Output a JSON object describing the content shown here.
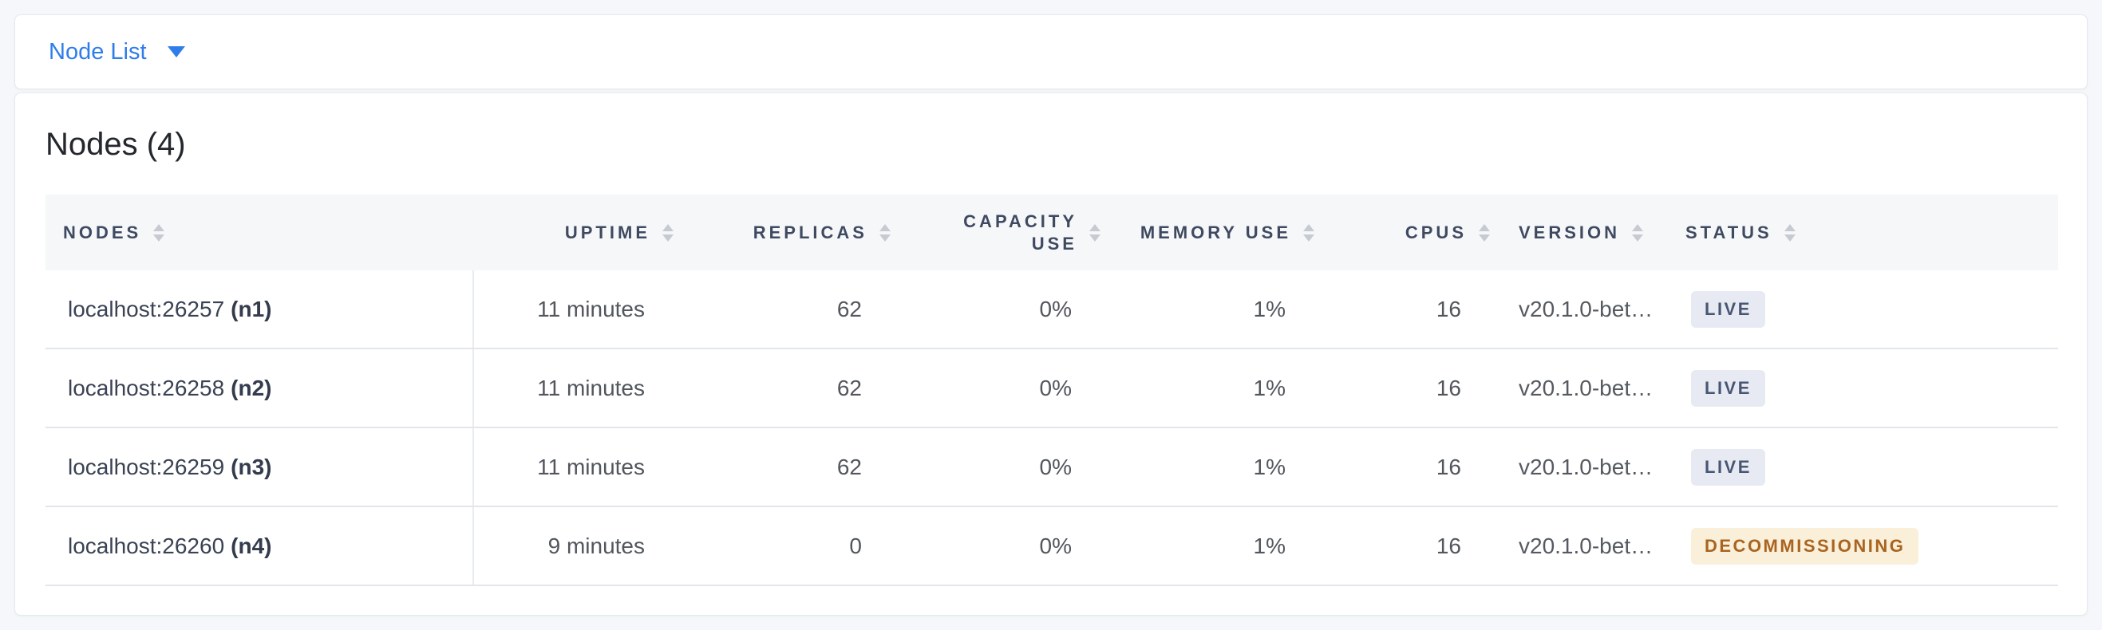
{
  "view_selector": {
    "label": "Node List"
  },
  "page": {
    "title": "Nodes (4)"
  },
  "table": {
    "columns": [
      {
        "label": "NODES"
      },
      {
        "label": "UPTIME"
      },
      {
        "label": "REPLICAS"
      },
      {
        "label": "CAPACITY USE"
      },
      {
        "label": "MEMORY USE"
      },
      {
        "label": "CPUS"
      },
      {
        "label": "VERSION"
      },
      {
        "label": "STATUS"
      }
    ],
    "rows": [
      {
        "address": "localhost:26257",
        "id": "(n1)",
        "uptime": "11 minutes",
        "replicas": "62",
        "capacity_use": "0%",
        "memory_use": "1%",
        "cpus": "16",
        "version": "v20.1.0-bet…",
        "status": "LIVE",
        "status_kind": "live"
      },
      {
        "address": "localhost:26258",
        "id": "(n2)",
        "uptime": "11 minutes",
        "replicas": "62",
        "capacity_use": "0%",
        "memory_use": "1%",
        "cpus": "16",
        "version": "v20.1.0-bet…",
        "status": "LIVE",
        "status_kind": "live"
      },
      {
        "address": "localhost:26259",
        "id": "(n3)",
        "uptime": "11 minutes",
        "replicas": "62",
        "capacity_use": "0%",
        "memory_use": "1%",
        "cpus": "16",
        "version": "v20.1.0-bet…",
        "status": "LIVE",
        "status_kind": "live"
      },
      {
        "address": "localhost:26260",
        "id": "(n4)",
        "uptime": "9 minutes",
        "replicas": "0",
        "capacity_use": "0%",
        "memory_use": "1%",
        "cpus": "16",
        "version": "v20.1.0-bet…",
        "status": "DECOMMISSIONING",
        "status_kind": "decommissioning"
      }
    ]
  },
  "colors": {
    "accent_blue": "#2F7DEB",
    "badge_live_bg": "#E7EAF2",
    "badge_live_text": "#475672",
    "badge_decommissioning_bg": "#FAEFD9",
    "badge_decommissioning_text": "#A96420"
  }
}
